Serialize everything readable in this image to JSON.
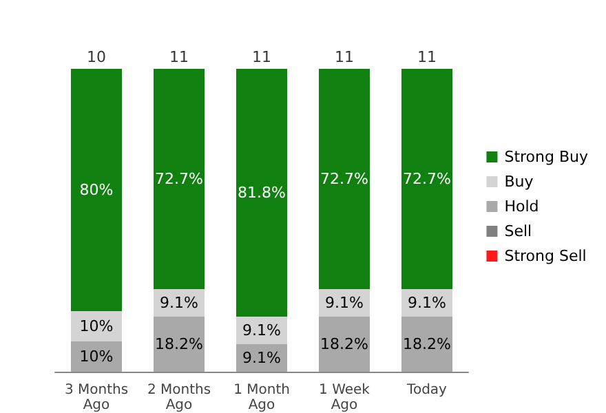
{
  "chart_data": {
    "type": "bar",
    "stacked": true,
    "categories": [
      "3 Months\nAgo",
      "2 Months\nAgo",
      "1 Month\nAgo",
      "1 Week\nAgo",
      "Today"
    ],
    "series": [
      {
        "name": "Hold",
        "color": "#a9a9a9",
        "values": [
          10,
          18.2,
          9.1,
          18.2,
          18.2
        ],
        "value_labels": [
          "10%",
          "18.2%",
          "9.1%",
          "18.2%",
          "18.2%"
        ]
      },
      {
        "name": "Buy",
        "color": "#d4d4d4",
        "values": [
          10,
          9.1,
          9.1,
          9.1,
          9.1
        ],
        "value_labels": [
          "10%",
          "9.1%",
          "9.1%",
          "9.1%",
          "9.1%"
        ]
      },
      {
        "name": "Strong Buy",
        "color": "#108010",
        "values": [
          80,
          72.7,
          81.8,
          72.7,
          72.7
        ],
        "value_labels": [
          "80%",
          "72.7%",
          "81.8%",
          "72.7%",
          "72.7%"
        ]
      },
      {
        "name": "Sell",
        "color": "#808080",
        "values": [
          null,
          null,
          null,
          null,
          null
        ]
      },
      {
        "name": "Strong Sell",
        "color": "#ff1a1a",
        "values": [
          null,
          null,
          null,
          null,
          null
        ]
      }
    ],
    "annotations": [
      {
        "text": "10",
        "x": "3 Months\nAgo",
        "y": 100
      },
      {
        "text": "11",
        "x": "2 Months\nAgo",
        "y": 100
      },
      {
        "text": "11",
        "x": "1 Month\nAgo",
        "y": 100
      },
      {
        "text": "11",
        "x": "1 Week\nAgo",
        "y": 100
      },
      {
        "text": "11",
        "x": "Today",
        "y": 100
      }
    ],
    "legend": "right"
  }
}
